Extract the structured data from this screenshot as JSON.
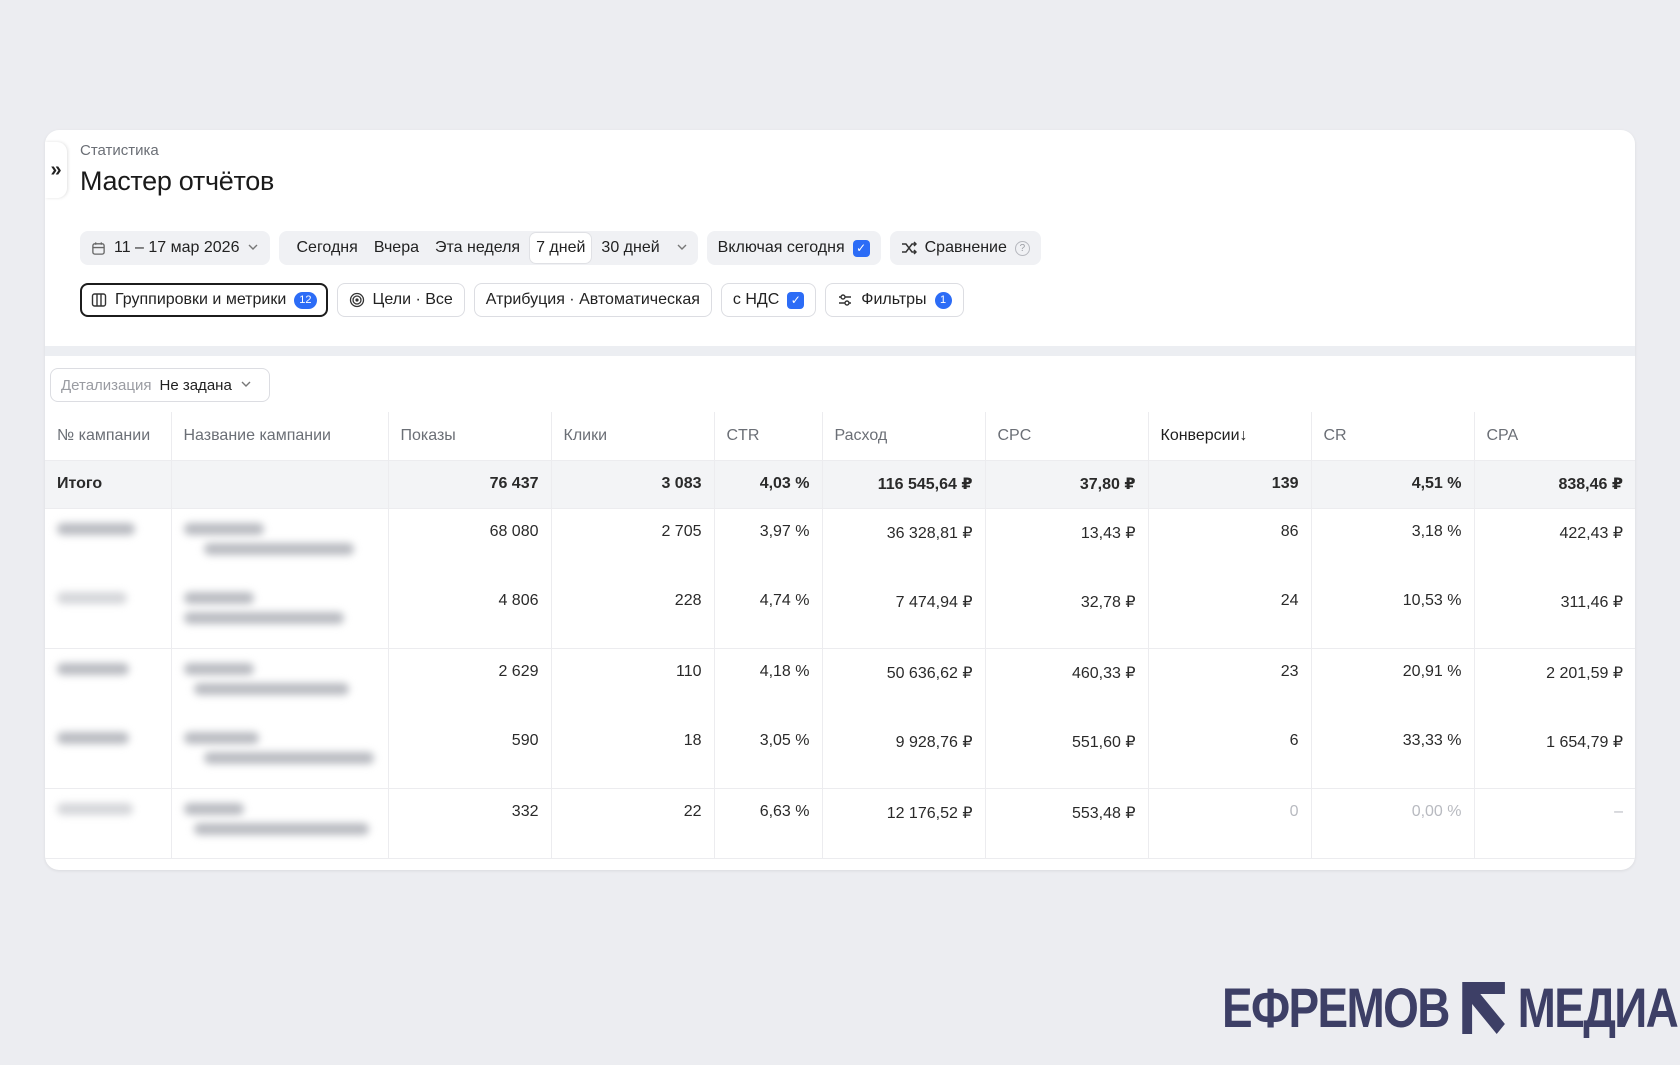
{
  "header": {
    "breadcrumb": "Статистика",
    "title": "Мастер отчётов",
    "collapse_glyph": "»"
  },
  "toolbar": {
    "date_range": "11 – 17 мар 2026",
    "periods": [
      "Сегодня",
      "Вчера",
      "Эта неделя",
      "7 дней",
      "30 дней"
    ],
    "selected_period": "7 дней",
    "include_today": "Включая сегодня",
    "include_today_checked": true,
    "comparison": "Сравнение",
    "groupings": "Группировки и метрики",
    "groupings_count": "12",
    "goals": "Цели · Все",
    "attribution": "Атрибуция · Автоматическая",
    "vat": "с НДС",
    "vat_checked": true,
    "filters": "Фильтры",
    "filters_count": "1"
  },
  "detail": {
    "label": "Детализация",
    "value": "Не задана"
  },
  "table": {
    "columns": [
      "№ кампании",
      "Название кампании",
      "Показы",
      "Клики",
      "CTR",
      "Расход",
      "CPC",
      "Конверсии↓",
      "CR",
      "CPA"
    ],
    "total": {
      "label": "Итого",
      "values": [
        "76 437",
        "3 083",
        "4,03 %",
        "116 545,64 ₽",
        "37,80 ₽",
        "139",
        "4,51 %",
        "838,46 ₽"
      ]
    },
    "rows": [
      [
        "68 080",
        "2 705",
        "3,97 %",
        "36 328,81 ₽",
        "13,43 ₽",
        "86",
        "3,18 %",
        "422,43 ₽"
      ],
      [
        "4 806",
        "228",
        "4,74 %",
        "7 474,94 ₽",
        "32,78 ₽",
        "24",
        "10,53 %",
        "311,46 ₽"
      ],
      [
        "2 629",
        "110",
        "4,18 %",
        "50 636,62 ₽",
        "460,33 ₽",
        "23",
        "20,91 %",
        "2 201,59 ₽"
      ],
      [
        "590",
        "18",
        "3,05 %",
        "9 928,76 ₽",
        "551,60 ₽",
        "6",
        "33,33 %",
        "1 654,79 ₽"
      ],
      [
        "332",
        "22",
        "6,63 %",
        "12 176,52 ₽",
        "553,48 ₽",
        "0",
        "0,00 %",
        "–"
      ]
    ]
  },
  "watermark": {
    "left": "ЕФРЕМОВ",
    "right": "МЕДИА",
    "color": "#3d3f66"
  },
  "colors": {
    "accent": "#2c6cf6",
    "background": "#ecedf1"
  }
}
